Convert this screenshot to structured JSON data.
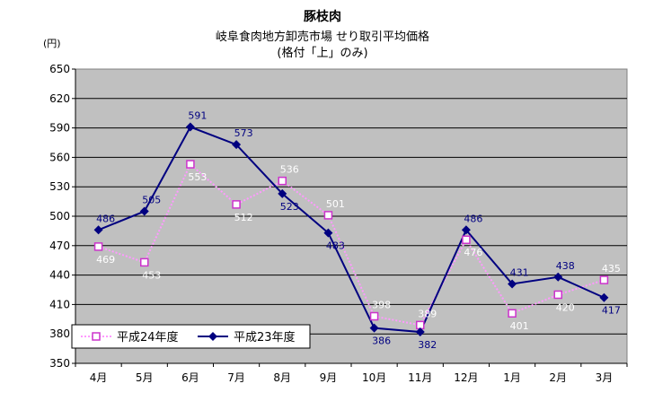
{
  "chart_data": {
    "type": "line",
    "title": "豚枝肉",
    "subtitle1": "岐阜食肉地方卸売市場 せり取引平均価格",
    "subtitle2": "(格付「上」のみ)",
    "ylabel": "(円)",
    "xlabel": "",
    "ylim": [
      350,
      650
    ],
    "yticks": [
      350,
      380,
      410,
      440,
      470,
      500,
      530,
      560,
      590,
      620,
      650
    ],
    "grid": true,
    "legend_position": "bottom-left",
    "categories": [
      "4月",
      "5月",
      "6月",
      "7月",
      "8月",
      "9月",
      "10月",
      "11月",
      "12月",
      "1月",
      "2月",
      "3月"
    ],
    "series": [
      {
        "name": "平成24年度",
        "values": [
          469,
          453,
          553,
          512,
          536,
          501,
          398,
          389,
          476,
          401,
          420,
          435
        ],
        "color": "#cc33cc",
        "marker": "square-open",
        "line_style": "dotted",
        "label_color": "#ffffff"
      },
      {
        "name": "平成23年度",
        "values": [
          486,
          505,
          591,
          573,
          523,
          483,
          386,
          382,
          486,
          431,
          438,
          417
        ],
        "color": "#000080",
        "marker": "diamond-filled",
        "line_style": "solid",
        "label_color": "#000080"
      }
    ]
  }
}
